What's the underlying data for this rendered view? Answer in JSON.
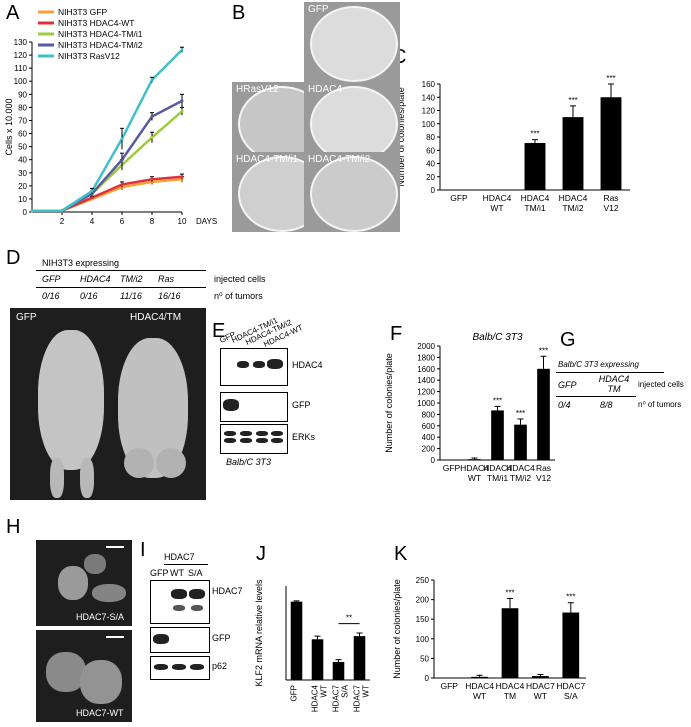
{
  "panels": {
    "A": "A",
    "B": "B",
    "C": "C",
    "D": "D",
    "E": "E",
    "F": "F",
    "G": "G",
    "H": "H",
    "I": "I",
    "J": "J",
    "K": "K"
  },
  "panelB": {
    "plates": [
      "GFP",
      "HRasV12",
      "HDAC4",
      "HDAC4-TM/i1",
      "HDAC4-TM/i2"
    ]
  },
  "panelD": {
    "header": "NIH3T3 expressing",
    "cols": [
      "GFP",
      "HDAC4",
      "TM/i2",
      "Ras"
    ],
    "counts": [
      "0/16",
      "0/16",
      "11/16",
      "16/16"
    ],
    "row1_label": "injected cells",
    "row2_label": "n⁰ of tumors",
    "photo_left": "GFP",
    "photo_right": "HDAC4/TM"
  },
  "panelE": {
    "lanes": [
      "GFP",
      "HDAC4-TM/i1",
      "HDAC4-TM/i2",
      "HDAC4-WT"
    ],
    "blots": [
      "HDAC4",
      "GFP",
      "ERKs"
    ],
    "caption": "Balb/C 3T3"
  },
  "panelG": {
    "header": "Balb/C 3T3 expressing",
    "cols": [
      "GFP",
      "HDAC4 TM"
    ],
    "counts": [
      "0/4",
      "8/8"
    ],
    "row1_label": "injected cells",
    "row2_label": "n⁰ of tumors"
  },
  "panelH": {
    "top_label": "HDAC7-S/A",
    "bottom_label": "HDAC7-WT"
  },
  "panelI": {
    "group_label": "HDAC7",
    "lanes": [
      "GFP",
      "WT",
      "S/A"
    ],
    "blots": [
      "HDAC7",
      "GFP",
      "p62"
    ]
  },
  "chart_data": [
    {
      "id": "A",
      "type": "line",
      "title": "",
      "xlabel": "DAYS",
      "ylabel": "Cells x 10.000",
      "x": [
        0,
        2,
        4,
        6,
        8,
        10
      ],
      "xticks": [
        "2",
        "4",
        "6",
        "8",
        "10"
      ],
      "yticks": [
        "0",
        "10",
        "20",
        "30",
        "40",
        "50",
        "60",
        "70",
        "80",
        "90",
        "100",
        "110",
        "120",
        "130"
      ],
      "ylim": [
        0,
        130
      ],
      "legend_position": "top-left",
      "series": [
        {
          "name": "NIH3T3 GFP",
          "color": "#f7a13a",
          "values": [
            1,
            1,
            10,
            19,
            23,
            25
          ],
          "errors": [
            0,
            0,
            1,
            2,
            2,
            2
          ]
        },
        {
          "name": "NIH3T3 HDAC4-WT",
          "color": "#e0303a",
          "values": [
            1,
            1,
            11,
            21,
            25,
            27
          ],
          "errors": [
            0,
            0,
            1,
            2,
            2,
            2
          ]
        },
        {
          "name": "NIH3T3 HDAC4-TM/i1",
          "color": "#9ccc3c",
          "values": [
            1,
            1,
            14,
            36,
            57,
            77
          ],
          "errors": [
            0,
            0,
            2,
            4,
            4,
            3
          ]
        },
        {
          "name": "NIH3T3 HDAC4-TM/i2",
          "color": "#5a5aa0",
          "values": [
            1,
            1,
            14,
            40,
            73,
            85
          ],
          "errors": [
            0,
            0,
            2,
            5,
            3,
            5
          ]
        },
        {
          "name": "NIH3T3 RasV12",
          "color": "#40c0c8",
          "values": [
            1,
            1,
            16,
            56,
            101,
            124
          ],
          "errors": [
            0,
            0,
            2,
            8,
            2,
            2
          ]
        }
      ]
    },
    {
      "id": "C",
      "type": "bar",
      "ylabel": "Number of colonies/plate",
      "categories": [
        "GFP",
        "HDAC4 WT",
        "HDAC4 TM/i1",
        "HDAC4 TM/i2",
        "Ras V12"
      ],
      "values": [
        0,
        0,
        71,
        110,
        140
      ],
      "errors": [
        0,
        0,
        5,
        17,
        20
      ],
      "significance": [
        "",
        "",
        "***",
        "***",
        "***"
      ],
      "ylim": [
        0,
        160
      ],
      "yticks": [
        "0",
        "20",
        "40",
        "60",
        "80",
        "100",
        "120",
        "140",
        "160"
      ]
    },
    {
      "id": "F",
      "type": "bar",
      "title": "Balb/C 3T3",
      "ylabel": "Number of colonies/plate",
      "categories": [
        "GFP",
        "HDAC4 WT",
        "HDAC4 TM/i1",
        "HDAC4 TM/i2",
        "Ras V12"
      ],
      "values": [
        5,
        15,
        870,
        620,
        1600
      ],
      "errors": [
        0,
        20,
        70,
        100,
        220
      ],
      "significance": [
        "",
        "",
        "***",
        "***",
        "***"
      ],
      "ylim": [
        0,
        2000
      ],
      "yticks": [
        "0",
        "200",
        "400",
        "600",
        "800",
        "1000",
        "1200",
        "1400",
        "1600",
        "1800",
        "2000"
      ]
    },
    {
      "id": "J",
      "type": "bar",
      "ylabel": "KLF2 mRNA relative levels",
      "categories": [
        "GFP",
        "HDAC4 WT",
        "HDAC7 S/A",
        "HDAC7 WT"
      ],
      "values": [
        1.0,
        0.52,
        0.23,
        0.56
      ],
      "errors": [
        0.01,
        0.04,
        0.03,
        0.04
      ],
      "annotation": "**",
      "ylim": [
        0,
        1.2
      ],
      "yticks": []
    },
    {
      "id": "K",
      "type": "bar",
      "ylabel": "Number of colonies/plate",
      "categories": [
        "GFP",
        "HDAC4 WT",
        "HDAC4 TM",
        "HDAC7 WT",
        "HDAC7 S/A"
      ],
      "values": [
        0,
        3,
        178,
        5,
        167
      ],
      "errors": [
        0,
        4,
        25,
        4,
        25
      ],
      "significance": [
        "",
        "",
        "***",
        "",
        "***"
      ],
      "ylim": [
        0,
        250
      ],
      "yticks": [
        "0",
        "50",
        "100",
        "150",
        "200",
        "250"
      ]
    }
  ]
}
